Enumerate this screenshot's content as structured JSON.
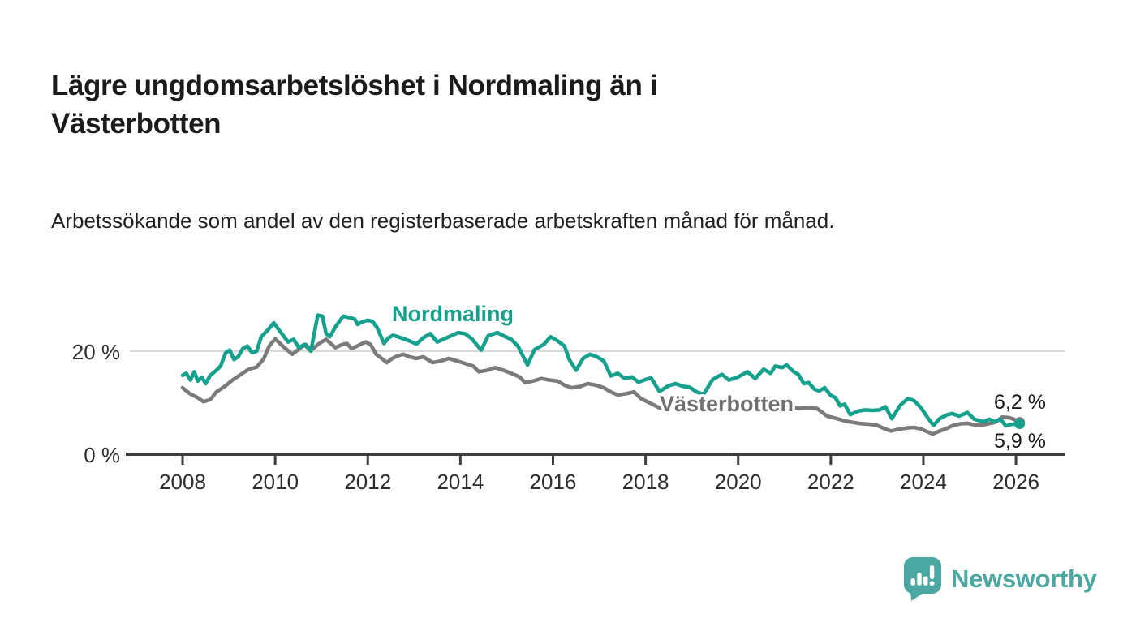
{
  "header": {
    "title": "Lägre ungdomsarbetslöshet i Nordmaling än i Västerbotten",
    "subtitle": "Arbetssökande som andel av den registerbaserade arbetskraften månad för månad."
  },
  "chart_data": {
    "type": "line",
    "title": "Lägre ungdomsarbetslöshet i Nordmaling än i Västerbotten",
    "subtitle": "Arbetssökande som andel av den registerbaserade arbetskraften månad för månad.",
    "xlabel": "",
    "ylabel": "",
    "x_axis": {
      "ticks": [
        2008,
        2010,
        2012,
        2014,
        2016,
        2018,
        2020,
        2022,
        2024,
        2026
      ],
      "range": [
        2007.8,
        2027.0
      ]
    },
    "y_axis": {
      "ticks": [
        {
          "value": 20,
          "label": "20 %"
        },
        {
          "value": 0,
          "label": "0 %"
        }
      ],
      "range": [
        0,
        34
      ],
      "unit": "%"
    },
    "grid": "horizontal-only",
    "legend_position": "inline-labels",
    "style": {
      "grid_color": "#d9d9d9",
      "axis_color": "#3d3d3d",
      "axis_label_color": "#2e2e2e",
      "value_label_color": "#1a1a1a",
      "background": "#ffffff"
    },
    "series": [
      {
        "name": "Nordmaling",
        "color": "#16A08E",
        "label_color": "#16A08E",
        "end_label": "5,9 %",
        "end_value": 5.9,
        "points": [
          [
            2008.0,
            15.3
          ],
          [
            2008.08,
            15.7
          ],
          [
            2008.17,
            14.4
          ],
          [
            2008.25,
            16.0
          ],
          [
            2008.33,
            14.2
          ],
          [
            2008.42,
            14.9
          ],
          [
            2008.5,
            13.7
          ],
          [
            2008.6,
            15.3
          ],
          [
            2008.73,
            16.3
          ],
          [
            2008.82,
            17.1
          ],
          [
            2008.93,
            19.7
          ],
          [
            2009.02,
            20.2
          ],
          [
            2009.11,
            18.4
          ],
          [
            2009.2,
            18.9
          ],
          [
            2009.3,
            20.5
          ],
          [
            2009.4,
            21.0
          ],
          [
            2009.5,
            19.7
          ],
          [
            2009.6,
            20.0
          ],
          [
            2009.7,
            22.8
          ],
          [
            2009.84,
            24.1
          ],
          [
            2009.97,
            25.5
          ],
          [
            2010.1,
            23.9
          ],
          [
            2010.28,
            21.8
          ],
          [
            2010.4,
            22.3
          ],
          [
            2010.51,
            20.7
          ],
          [
            2010.63,
            21.3
          ],
          [
            2010.77,
            20.0
          ],
          [
            2010.92,
            27.0
          ],
          [
            2011.02,
            26.8
          ],
          [
            2011.1,
            23.4
          ],
          [
            2011.18,
            22.8
          ],
          [
            2011.3,
            24.7
          ],
          [
            2011.47,
            26.8
          ],
          [
            2011.62,
            26.5
          ],
          [
            2011.72,
            26.2
          ],
          [
            2011.78,
            25.2
          ],
          [
            2011.88,
            25.7
          ],
          [
            2012.0,
            26.0
          ],
          [
            2012.1,
            25.8
          ],
          [
            2012.2,
            24.6
          ],
          [
            2012.35,
            21.5
          ],
          [
            2012.45,
            22.6
          ],
          [
            2012.55,
            23.1
          ],
          [
            2012.65,
            22.8
          ],
          [
            2012.78,
            22.4
          ],
          [
            2012.9,
            22.0
          ],
          [
            2013.05,
            21.4
          ],
          [
            2013.2,
            22.6
          ],
          [
            2013.35,
            23.4
          ],
          [
            2013.5,
            21.8
          ],
          [
            2013.65,
            22.4
          ],
          [
            2013.8,
            23.0
          ],
          [
            2013.95,
            23.6
          ],
          [
            2014.1,
            23.4
          ],
          [
            2014.25,
            22.4
          ],
          [
            2014.45,
            20.2
          ],
          [
            2014.6,
            23.0
          ],
          [
            2014.8,
            23.6
          ],
          [
            2014.95,
            22.9
          ],
          [
            2015.1,
            22.3
          ],
          [
            2015.25,
            20.9
          ],
          [
            2015.45,
            17.3
          ],
          [
            2015.6,
            20.3
          ],
          [
            2015.8,
            21.3
          ],
          [
            2015.95,
            22.8
          ],
          [
            2016.1,
            22.0
          ],
          [
            2016.25,
            21.0
          ],
          [
            2016.35,
            18.4
          ],
          [
            2016.5,
            16.3
          ],
          [
            2016.65,
            18.6
          ],
          [
            2016.8,
            19.4
          ],
          [
            2016.95,
            18.9
          ],
          [
            2017.1,
            18.1
          ],
          [
            2017.25,
            15.2
          ],
          [
            2017.4,
            15.7
          ],
          [
            2017.55,
            14.7
          ],
          [
            2017.7,
            15.0
          ],
          [
            2017.85,
            14.0
          ],
          [
            2018.0,
            14.5
          ],
          [
            2018.12,
            14.8
          ],
          [
            2018.3,
            12.2
          ],
          [
            2018.5,
            13.3
          ],
          [
            2018.65,
            13.7
          ],
          [
            2018.8,
            13.2
          ],
          [
            2018.95,
            13.0
          ],
          [
            2019.1,
            12.1
          ],
          [
            2019.25,
            11.6
          ],
          [
            2019.45,
            14.5
          ],
          [
            2019.65,
            15.5
          ],
          [
            2019.8,
            14.4
          ],
          [
            2020.0,
            15.0
          ],
          [
            2020.2,
            16.0
          ],
          [
            2020.37,
            14.7
          ],
          [
            2020.55,
            16.5
          ],
          [
            2020.7,
            15.7
          ],
          [
            2020.8,
            17.1
          ],
          [
            2020.95,
            16.8
          ],
          [
            2021.05,
            17.3
          ],
          [
            2021.2,
            16.0
          ],
          [
            2021.3,
            15.5
          ],
          [
            2021.42,
            13.7
          ],
          [
            2021.52,
            13.9
          ],
          [
            2021.65,
            12.6
          ],
          [
            2021.75,
            12.3
          ],
          [
            2021.87,
            12.9
          ],
          [
            2022.0,
            11.4
          ],
          [
            2022.1,
            11.0
          ],
          [
            2022.2,
            9.4
          ],
          [
            2022.3,
            9.7
          ],
          [
            2022.42,
            7.7
          ],
          [
            2022.6,
            8.4
          ],
          [
            2022.75,
            8.6
          ],
          [
            2022.9,
            8.5
          ],
          [
            2023.05,
            8.6
          ],
          [
            2023.18,
            9.2
          ],
          [
            2023.32,
            6.9
          ],
          [
            2023.5,
            9.5
          ],
          [
            2023.67,
            10.8
          ],
          [
            2023.8,
            10.4
          ],
          [
            2023.95,
            9.0
          ],
          [
            2024.1,
            7.0
          ],
          [
            2024.22,
            5.6
          ],
          [
            2024.35,
            6.9
          ],
          [
            2024.5,
            7.6
          ],
          [
            2024.62,
            7.9
          ],
          [
            2024.77,
            7.4
          ],
          [
            2024.95,
            8.1
          ],
          [
            2025.1,
            6.8
          ],
          [
            2025.3,
            6.3
          ],
          [
            2025.42,
            6.8
          ],
          [
            2025.55,
            6.3
          ],
          [
            2025.67,
            6.8
          ],
          [
            2025.78,
            5.5
          ],
          [
            2025.9,
            5.8
          ],
          [
            2026.08,
            5.9
          ]
        ]
      },
      {
        "name": "Västerbotten",
        "color": "#7b7b7b",
        "label_color": "#6f6f6f",
        "end_label": "6,2 %",
        "end_value": 6.2,
        "points": [
          [
            2008.0,
            12.9
          ],
          [
            2008.15,
            11.8
          ],
          [
            2008.32,
            11.0
          ],
          [
            2008.45,
            10.2
          ],
          [
            2008.6,
            10.6
          ],
          [
            2008.73,
            12.1
          ],
          [
            2008.9,
            13.1
          ],
          [
            2009.08,
            14.4
          ],
          [
            2009.26,
            15.5
          ],
          [
            2009.43,
            16.5
          ],
          [
            2009.6,
            16.9
          ],
          [
            2009.75,
            18.5
          ],
          [
            2009.87,
            21.0
          ],
          [
            2010.0,
            22.4
          ],
          [
            2010.2,
            20.7
          ],
          [
            2010.37,
            19.4
          ],
          [
            2010.55,
            20.7
          ],
          [
            2010.66,
            21.3
          ],
          [
            2010.78,
            20.2
          ],
          [
            2010.95,
            21.5
          ],
          [
            2011.1,
            22.3
          ],
          [
            2011.3,
            20.7
          ],
          [
            2011.45,
            21.3
          ],
          [
            2011.55,
            21.5
          ],
          [
            2011.65,
            20.5
          ],
          [
            2011.77,
            21.0
          ],
          [
            2011.95,
            21.8
          ],
          [
            2012.06,
            21.3
          ],
          [
            2012.18,
            19.4
          ],
          [
            2012.3,
            18.6
          ],
          [
            2012.41,
            17.8
          ],
          [
            2012.53,
            18.6
          ],
          [
            2012.65,
            19.1
          ],
          [
            2012.77,
            19.4
          ],
          [
            2012.9,
            18.9
          ],
          [
            2013.05,
            18.6
          ],
          [
            2013.2,
            18.9
          ],
          [
            2013.4,
            17.8
          ],
          [
            2013.58,
            18.1
          ],
          [
            2013.75,
            18.6
          ],
          [
            2013.93,
            18.1
          ],
          [
            2014.1,
            17.6
          ],
          [
            2014.28,
            17.1
          ],
          [
            2014.4,
            16.0
          ],
          [
            2014.58,
            16.3
          ],
          [
            2014.75,
            16.8
          ],
          [
            2014.93,
            16.3
          ],
          [
            2015.1,
            15.7
          ],
          [
            2015.28,
            15.0
          ],
          [
            2015.4,
            13.9
          ],
          [
            2015.57,
            14.2
          ],
          [
            2015.75,
            14.7
          ],
          [
            2015.93,
            14.4
          ],
          [
            2016.1,
            14.2
          ],
          [
            2016.25,
            13.4
          ],
          [
            2016.4,
            12.9
          ],
          [
            2016.57,
            13.1
          ],
          [
            2016.75,
            13.7
          ],
          [
            2016.93,
            13.4
          ],
          [
            2017.1,
            12.9
          ],
          [
            2017.25,
            12.1
          ],
          [
            2017.4,
            11.5
          ],
          [
            2017.6,
            11.8
          ],
          [
            2017.75,
            12.1
          ],
          [
            2017.9,
            10.8
          ],
          [
            2018.1,
            9.9
          ],
          [
            2018.3,
            9.0
          ],
          [
            2018.5,
            9.3
          ],
          [
            2018.7,
            9.6
          ],
          [
            2018.9,
            9.3
          ],
          [
            2019.1,
            8.9
          ],
          [
            2019.3,
            8.5
          ],
          [
            2019.5,
            8.7
          ],
          [
            2019.7,
            9.1
          ],
          [
            2019.9,
            9.4
          ],
          [
            2020.1,
            9.7
          ],
          [
            2020.3,
            10.0
          ],
          [
            2020.5,
            10.3
          ],
          [
            2020.7,
            10.0
          ],
          [
            2020.9,
            9.6
          ],
          [
            2021.1,
            9.2
          ],
          [
            2021.3,
            8.9
          ],
          [
            2021.5,
            9.0
          ],
          [
            2021.7,
            8.9
          ],
          [
            2021.92,
            7.4
          ],
          [
            2022.1,
            7.0
          ],
          [
            2022.25,
            6.6
          ],
          [
            2022.4,
            6.3
          ],
          [
            2022.6,
            6.0
          ],
          [
            2022.86,
            5.8
          ],
          [
            2023.0,
            5.6
          ],
          [
            2023.15,
            5.0
          ],
          [
            2023.3,
            4.5
          ],
          [
            2023.5,
            4.9
          ],
          [
            2023.65,
            5.1
          ],
          [
            2023.8,
            5.2
          ],
          [
            2023.95,
            4.9
          ],
          [
            2024.1,
            4.3
          ],
          [
            2024.2,
            3.9
          ],
          [
            2024.35,
            4.5
          ],
          [
            2024.5,
            5.0
          ],
          [
            2024.65,
            5.6
          ],
          [
            2024.8,
            5.9
          ],
          [
            2024.95,
            6.0
          ],
          [
            2025.1,
            5.7
          ],
          [
            2025.25,
            5.6
          ],
          [
            2025.4,
            5.9
          ],
          [
            2025.55,
            6.2
          ],
          [
            2025.7,
            7.2
          ],
          [
            2025.85,
            7.1
          ],
          [
            2025.95,
            6.8
          ],
          [
            2026.08,
            6.2
          ]
        ]
      }
    ]
  },
  "footer": {
    "brand": "Newsworthy"
  }
}
